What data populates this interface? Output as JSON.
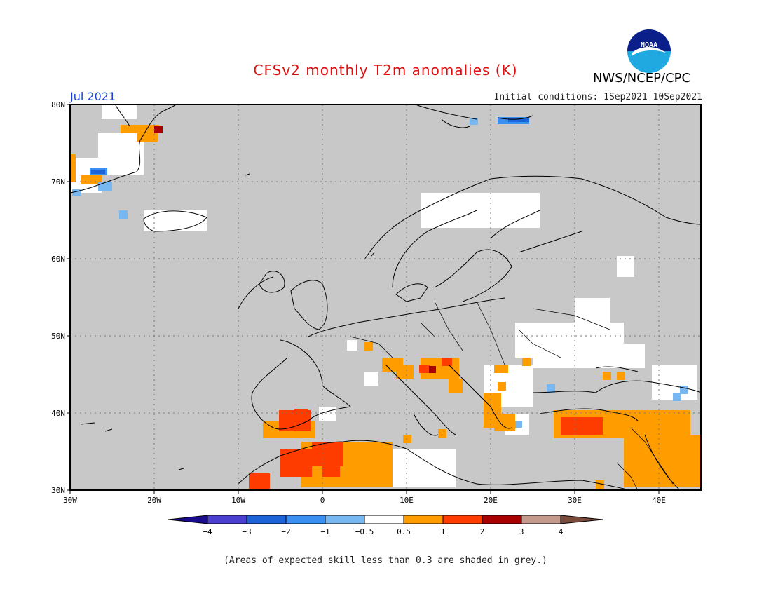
{
  "header": {
    "title": "CFSv2 monthly T2m anomalies (K)",
    "agency": "NWS/NCEP/CPC",
    "month": "Jul 2021",
    "initial_conditions": "Initial conditions: 1Sep2021—10Sep2021",
    "logo_text": "NOAA"
  },
  "map": {
    "lat_labels": [
      "80N",
      "70N",
      "60N",
      "50N",
      "40N",
      "30N"
    ],
    "lon_labels": [
      "30W",
      "20W",
      "10W",
      "0",
      "10E",
      "20E",
      "30E",
      "40E"
    ],
    "extent": {
      "lon": [
        -30,
        45
      ],
      "lat": [
        30,
        80
      ]
    },
    "background_color": "#c8c8c8",
    "gridlines": "dotted"
  },
  "colorbar": {
    "labels": [
      "−4",
      "−3",
      "−2",
      "−1",
      "−0.5",
      "0.5",
      "1",
      "2",
      "3",
      "4"
    ],
    "colors": [
      "#1a0a8c",
      "#4b3fd0",
      "#1d63d8",
      "#3a8ff0",
      "#78b8f2",
      "#ffffff",
      "#ff9d00",
      "#ff3c00",
      "#a80000",
      "#c49a8c",
      "#7a4a3a"
    ]
  },
  "footnote": "(Areas of expected skill less than 0.3 are shaded in grey.)"
}
